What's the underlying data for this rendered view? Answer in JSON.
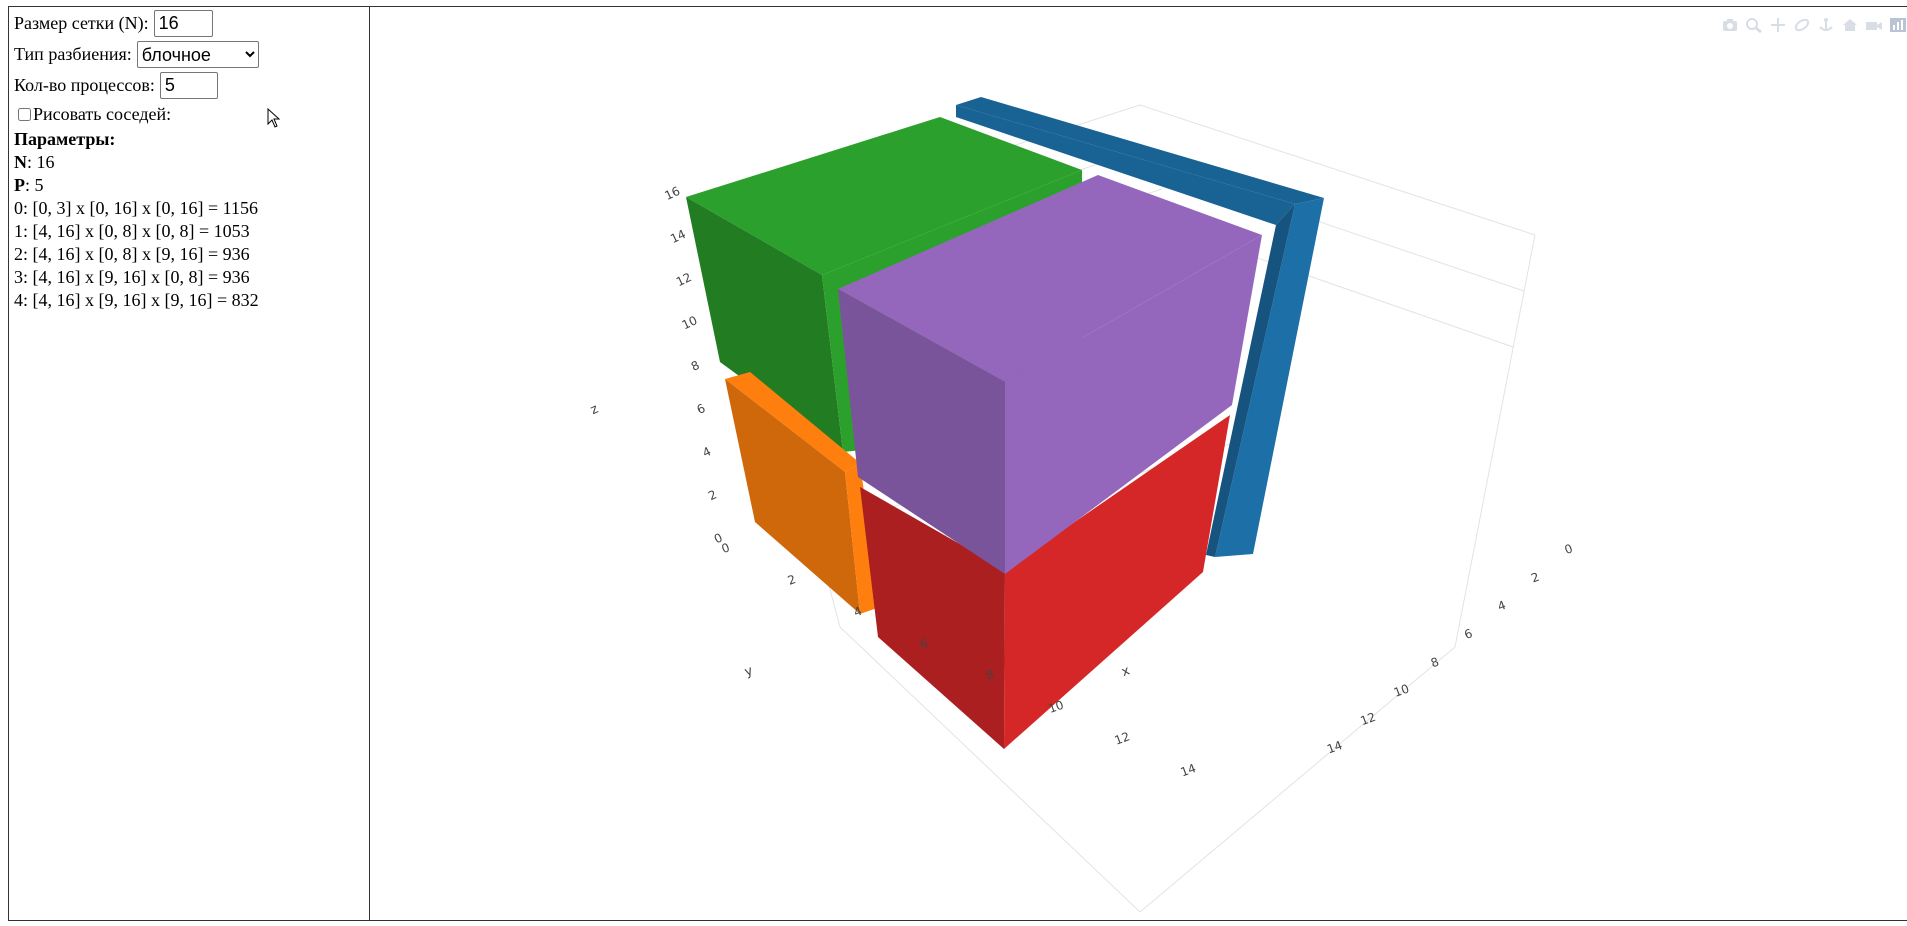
{
  "sidebar": {
    "grid_size": {
      "label": "Размер сетки (N):",
      "value": "16"
    },
    "partition_type": {
      "label": "Тип разбиения:",
      "selected": "блочное"
    },
    "process_count": {
      "label": "Кол-во процессов:",
      "value": "5"
    },
    "draw_neighbors": {
      "label": "Рисовать соседей:",
      "checked": false
    },
    "params_title": "Параметры:",
    "param_n": {
      "label": "N",
      "value": ": 16"
    },
    "param_p": {
      "label": "P",
      "value": ": 5"
    },
    "blocks": [
      "0: [0, 3] x [0, 16] x [0, 16] = 1156",
      "1: [4, 16] x [0, 8] x [0, 8] = 1053",
      "2: [4, 16] x [0, 8] x [9, 16] = 936",
      "3: [4, 16] x [9, 16] x [0, 8] = 936",
      "4: [4, 16] x [9, 16] x [9, 16] = 832"
    ]
  },
  "plot": {
    "axis_titles": {
      "x": "x",
      "y": "y",
      "z": "z"
    },
    "z_ticks": [
      "0",
      "2",
      "4",
      "6",
      "8",
      "10",
      "12",
      "14",
      "16"
    ],
    "y_ticks": [
      "0",
      "2",
      "4",
      "6",
      "8",
      "10",
      "12",
      "14"
    ],
    "x_ticks": [
      "0",
      "2",
      "4",
      "6",
      "8",
      "10",
      "12",
      "14"
    ],
    "colors": {
      "block0": "#1f77b4",
      "block1": "#d62728",
      "block2": "#9467bd",
      "block3": "#ff7f0e",
      "block4": "#2ca02c"
    },
    "modebar_icons": [
      "camera-icon",
      "zoom-icon",
      "pan-icon",
      "orbit-icon",
      "turntable-icon",
      "home-icon",
      "camera-view-icon",
      "plotly-logo-icon"
    ]
  }
}
